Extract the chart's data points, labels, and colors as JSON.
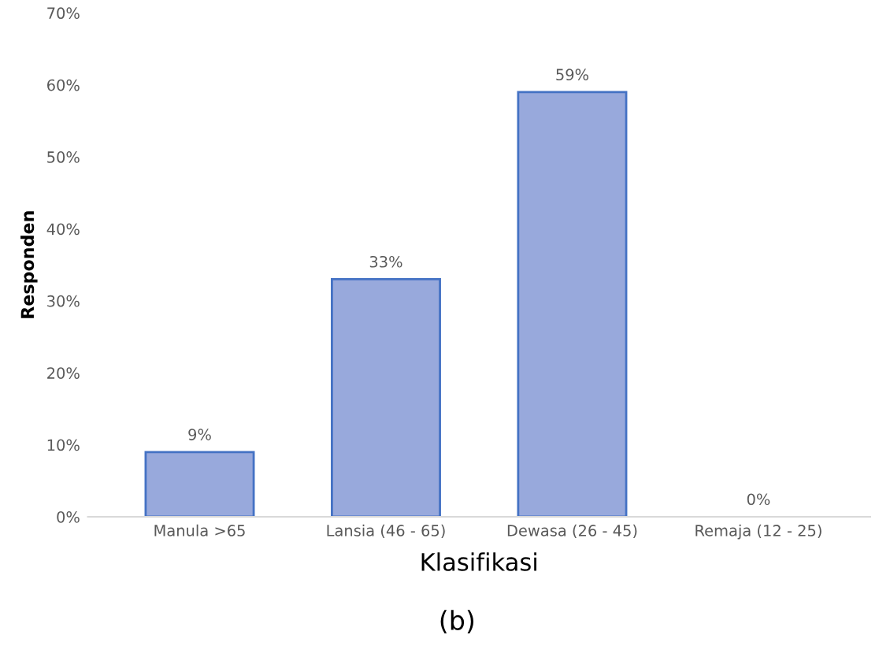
{
  "chart_data": {
    "type": "bar",
    "xlabel": "Klasifikasi",
    "ylabel": "Responden",
    "categories": [
      "Manula >65",
      "Lansia (46 - 65)",
      "Dewasa (26 - 45)",
      "Remaja (12 - 25)"
    ],
    "values": [
      9,
      33,
      59,
      0
    ],
    "value_labels": [
      "9%",
      "33%",
      "59%",
      "0%"
    ],
    "color": "#98a9dc",
    "ylim": [
      0,
      70
    ],
    "yticks": [
      {
        "value": 0,
        "label": "0%"
      },
      {
        "value": 10,
        "label": "10%"
      },
      {
        "value": 20,
        "label": "20%"
      },
      {
        "value": 30,
        "label": "30%"
      },
      {
        "value": 40,
        "label": "40%"
      },
      {
        "value": 50,
        "label": "50%"
      },
      {
        "value": 60,
        "label": "60%"
      },
      {
        "value": 70,
        "label": "70%"
      }
    ],
    "grid": false,
    "legend": false,
    "annotations": [
      "(b)"
    ]
  }
}
